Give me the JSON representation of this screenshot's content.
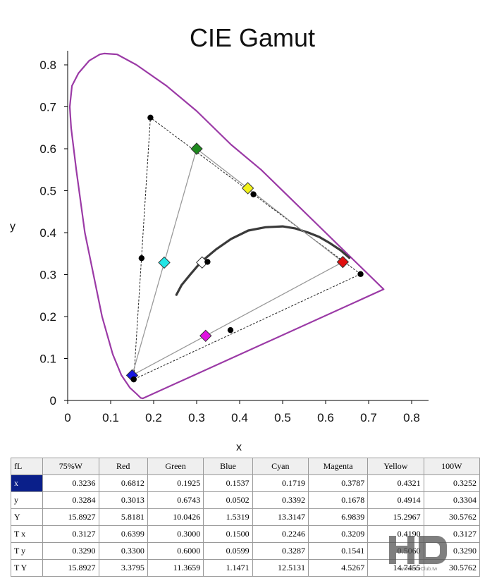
{
  "chart_data": {
    "type": "scatter",
    "title": "CIE Gamut",
    "xlabel": "x",
    "ylabel": "y",
    "xlim": [
      0,
      0.8
    ],
    "ylim": [
      0,
      0.8
    ],
    "x_ticks": [
      "0",
      "0.1",
      "0.2",
      "0.3",
      "0.4",
      "0.5",
      "0.6",
      "0.7",
      "0.8"
    ],
    "y_ticks": [
      "0",
      "0.1",
      "0.2",
      "0.3",
      "0.4",
      "0.5",
      "0.6",
      "0.7",
      "0.8"
    ],
    "grid": false,
    "colors": {
      "locus": "#9b3aa6",
      "planckian": "#3a3a3a",
      "red": "#e01010",
      "green": "#1e8a1e",
      "blue": "#1515e0",
      "cyan": "#22e5e5",
      "magenta": "#e012e0",
      "yellow": "#f2f21a",
      "white": "#ffffff"
    },
    "spectral_locus": [
      [
        0.175,
        0.005
      ],
      [
        0.17,
        0.006
      ],
      [
        0.16,
        0.016
      ],
      [
        0.145,
        0.03
      ],
      [
        0.125,
        0.06
      ],
      [
        0.105,
        0.11
      ],
      [
        0.08,
        0.2
      ],
      [
        0.06,
        0.3
      ],
      [
        0.04,
        0.4
      ],
      [
        0.02,
        0.55
      ],
      [
        0.008,
        0.65
      ],
      [
        0.005,
        0.7
      ],
      [
        0.01,
        0.75
      ],
      [
        0.025,
        0.78
      ],
      [
        0.05,
        0.81
      ],
      [
        0.075,
        0.825
      ],
      [
        0.085,
        0.827
      ],
      [
        0.115,
        0.825
      ],
      [
        0.16,
        0.8
      ],
      [
        0.23,
        0.75
      ],
      [
        0.3,
        0.69
      ],
      [
        0.38,
        0.61
      ],
      [
        0.45,
        0.55
      ],
      [
        0.52,
        0.48
      ],
      [
        0.58,
        0.42
      ],
      [
        0.65,
        0.35
      ],
      [
        0.7,
        0.3
      ],
      [
        0.735,
        0.265
      ],
      [
        0.735,
        0.265
      ],
      [
        0.175,
        0.005
      ]
    ],
    "planckian_locus": [
      [
        0.253,
        0.252
      ],
      [
        0.265,
        0.275
      ],
      [
        0.285,
        0.3
      ],
      [
        0.31,
        0.33
      ],
      [
        0.345,
        0.36
      ],
      [
        0.38,
        0.385
      ],
      [
        0.42,
        0.405
      ],
      [
        0.46,
        0.413
      ],
      [
        0.5,
        0.415
      ],
      [
        0.53,
        0.41
      ],
      [
        0.56,
        0.4
      ],
      [
        0.585,
        0.39
      ],
      [
        0.61,
        0.375
      ],
      [
        0.635,
        0.358
      ],
      [
        0.655,
        0.34
      ]
    ],
    "target_triangle": [
      [
        0.64,
        0.33
      ],
      [
        0.3,
        0.6
      ],
      [
        0.15,
        0.06
      ]
    ],
    "measured_triangle": [
      [
        0.6812,
        0.3013
      ],
      [
        0.1925,
        0.6743
      ],
      [
        0.1537,
        0.0502
      ]
    ],
    "target_points": [
      {
        "label": "Red",
        "x": 0.6399,
        "y": 0.33,
        "color": "#e01010"
      },
      {
        "label": "Green",
        "x": 0.3,
        "y": 0.6,
        "color": "#1e8a1e"
      },
      {
        "label": "Blue",
        "x": 0.15,
        "y": 0.0599,
        "color": "#1515e0"
      },
      {
        "label": "Cyan",
        "x": 0.2246,
        "y": 0.3287,
        "color": "#22e5e5"
      },
      {
        "label": "Magenta",
        "x": 0.3209,
        "y": 0.1541,
        "color": "#e012e0"
      },
      {
        "label": "Yellow",
        "x": 0.419,
        "y": 0.506,
        "color": "#f2f21a"
      },
      {
        "label": "100W",
        "x": 0.3127,
        "y": 0.329,
        "color": "#ffffff"
      }
    ],
    "measured_points": [
      {
        "label": "Red",
        "x": 0.6812,
        "y": 0.3013
      },
      {
        "label": "Green",
        "x": 0.1925,
        "y": 0.6743
      },
      {
        "label": "Blue",
        "x": 0.1537,
        "y": 0.0502
      },
      {
        "label": "Cyan",
        "x": 0.1719,
        "y": 0.3392
      },
      {
        "label": "Magenta",
        "x": 0.3787,
        "y": 0.1678
      },
      {
        "label": "Yellow",
        "x": 0.4321,
        "y": 0.4914
      },
      {
        "label": "100W",
        "x": 0.3252,
        "y": 0.3304
      }
    ]
  },
  "table": {
    "corner": "fL",
    "columns": [
      "75%W",
      "Red",
      "Green",
      "Blue",
      "Cyan",
      "Magenta",
      "Yellow",
      "100W"
    ],
    "rows": [
      {
        "label": "x",
        "values": [
          "0.3236",
          "0.6812",
          "0.1925",
          "0.1537",
          "0.1719",
          "0.3787",
          "0.4321",
          "0.3252"
        ]
      },
      {
        "label": "y",
        "values": [
          "0.3284",
          "0.3013",
          "0.6743",
          "0.0502",
          "0.3392",
          "0.1678",
          "0.4914",
          "0.3304"
        ]
      },
      {
        "label": "Y",
        "values": [
          "15.8927",
          "5.8181",
          "10.0426",
          "1.5319",
          "13.3147",
          "6.9839",
          "15.2967",
          "30.5762"
        ]
      },
      {
        "label": "T x",
        "values": [
          "0.3127",
          "0.6399",
          "0.3000",
          "0.1500",
          "0.2246",
          "0.3209",
          "0.4190",
          "0.3127"
        ]
      },
      {
        "label": "T y",
        "values": [
          "0.3290",
          "0.3300",
          "0.6000",
          "0.0599",
          "0.3287",
          "0.1541",
          "0.5060",
          "0.3290"
        ]
      },
      {
        "label": "T Y",
        "values": [
          "15.8927",
          "3.3795",
          "11.3659",
          "1.1471",
          "12.5131",
          "4.5267",
          "14.7455",
          "30.5762"
        ]
      }
    ]
  },
  "watermark": {
    "logo_text": "HD",
    "site_text": "www.HD-Club.tw"
  }
}
